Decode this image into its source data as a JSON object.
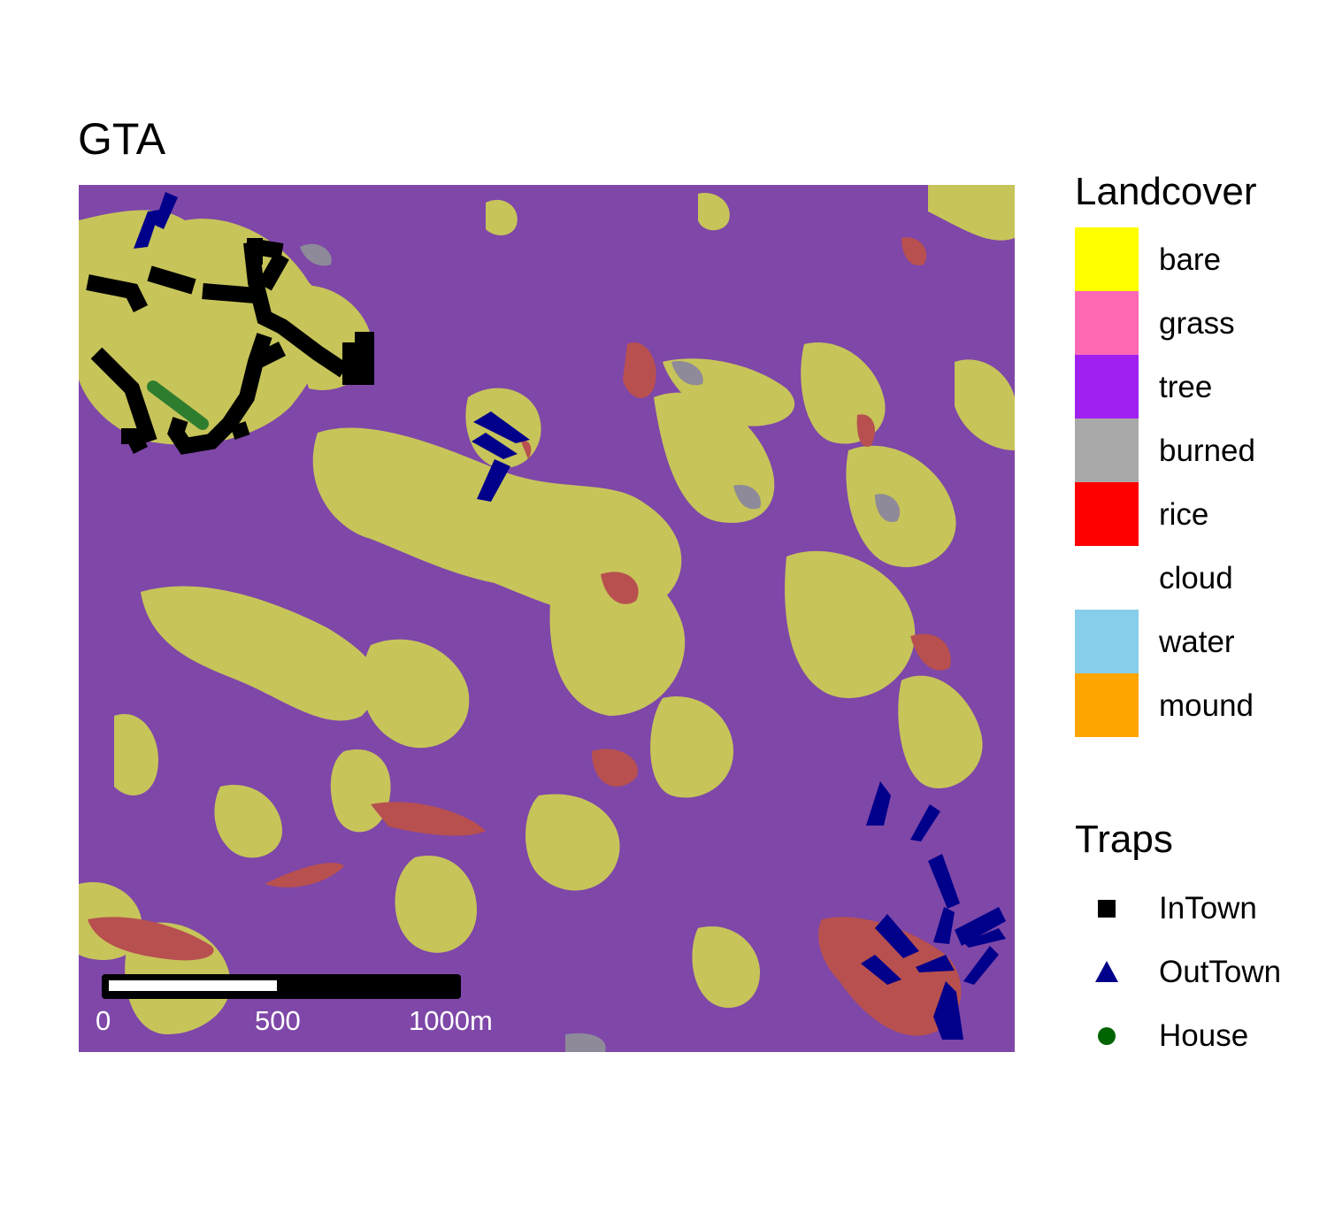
{
  "title": "GTA",
  "landcover_legend": {
    "title": "Landcover",
    "items": [
      {
        "label": "bare",
        "color": "#FFFF00"
      },
      {
        "label": "grass",
        "color": "#FF69B4"
      },
      {
        "label": "tree",
        "color": "#A020F0"
      },
      {
        "label": "burned",
        "color": "#A9A9A9"
      },
      {
        "label": "rice",
        "color": "#FF0000"
      },
      {
        "label": "cloud",
        "color": "#FFFFFF"
      },
      {
        "label": "water",
        "color": "#87CEEB"
      },
      {
        "label": "mound",
        "color": "#FFA500"
      }
    ]
  },
  "traps_legend": {
    "title": "Traps",
    "items": [
      {
        "label": "InTown",
        "shape": "square",
        "color": "#000000"
      },
      {
        "label": "OutTown",
        "shape": "triangle",
        "color": "#00008B"
      },
      {
        "label": "House",
        "shape": "circle",
        "color": "#006400"
      }
    ]
  },
  "scale_bar": {
    "labels": [
      "0",
      "500",
      "1000m"
    ]
  },
  "map_colors": {
    "tree_overlay": "#7E47A8",
    "bare_overlay": "#C7C45A",
    "rice_overlay": "#B8504F",
    "burned_overlay": "#8E8A99",
    "intown_track": "#000000",
    "outtown_track": "#00008B",
    "house_track": "#2E7D2E"
  }
}
